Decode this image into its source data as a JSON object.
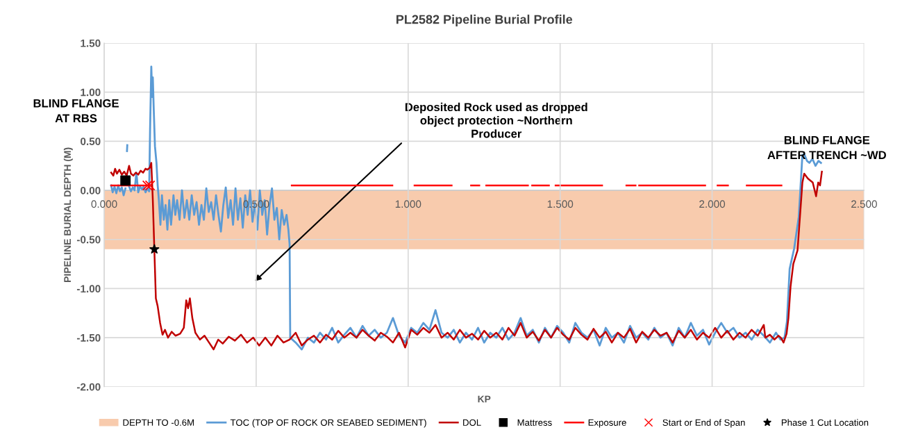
{
  "chart_data": {
    "type": "line",
    "title": "PL2582 Pipeline Burial Profile",
    "xlabel": "KP",
    "ylabel": "PIPELINE BURIAL DEPTH (M)",
    "xlim": [
      0,
      2.5
    ],
    "xticks": [
      {
        "value": 0,
        "label": "0.000"
      },
      {
        "value": 0.5,
        "label": "0.500"
      },
      {
        "value": 1.0,
        "label": "1.000"
      },
      {
        "value": 1.5,
        "label": "1.500"
      },
      {
        "value": 2.0,
        "label": "2.000"
      },
      {
        "value": 2.5,
        "label": "2.500"
      }
    ],
    "ylim": [
      -2,
      1.5
    ],
    "yticks": [
      {
        "value": -2,
        "label": "-2.00"
      },
      {
        "value": -1.5,
        "label": "-1.50"
      },
      {
        "value": -1,
        "label": "-1.00"
      },
      {
        "value": -0.5,
        "label": "-0.50"
      },
      {
        "value": 0,
        "label": "0.00"
      },
      {
        "value": 0.5,
        "label": "0.50"
      },
      {
        "value": 1,
        "label": "1.00"
      },
      {
        "value": 1.5,
        "label": "1.50"
      }
    ],
    "grid": true,
    "legend": "bottom",
    "bands": [
      {
        "axis": "y",
        "from": 0,
        "to": -0.6,
        "label": "DEPTH TO -0.6M",
        "color": "#f8cbad"
      }
    ],
    "annotations": [
      "BLIND FLANGE\nAT RBS",
      "BLIND FLANGE\nAFTER TRENCH ~WD",
      "Deposited Rock used as dropped\nobject protection ~Northern\nProducer"
    ],
    "series": [
      {
        "name": "TOC (TOP OF ROCK OR SEABED SEDIMENT)",
        "type": "line",
        "color": "#5b9bd5",
        "marker": "none",
        "x": [
          0.023,
          0.028,
          0.034,
          0.04,
          0.046,
          0.052,
          0.058,
          0.064,
          0.07,
          0.074,
          0.075,
          0.076,
          0.077,
          0.082,
          0.088,
          0.094,
          0.1,
          0.106,
          0.112,
          0.118,
          0.124,
          0.13,
          0.136,
          0.142,
          0.148,
          0.151,
          0.155,
          0.158,
          0.16,
          0.163,
          0.167,
          0.172,
          0.176,
          0.18,
          0.185,
          0.19,
          0.196,
          0.202,
          0.208,
          0.214,
          0.22,
          0.228,
          0.234,
          0.24,
          0.248,
          0.256,
          0.264,
          0.272,
          0.28,
          0.288,
          0.296,
          0.304,
          0.312,
          0.32,
          0.328,
          0.336,
          0.344,
          0.352,
          0.36,
          0.368,
          0.376,
          0.384,
          0.392,
          0.4,
          0.408,
          0.416,
          0.424,
          0.432,
          0.44,
          0.448,
          0.456,
          0.464,
          0.472,
          0.48,
          0.488,
          0.496,
          0.504,
          0.512,
          0.52,
          0.528,
          0.536,
          0.544,
          0.552,
          0.56,
          0.568,
          0.576,
          0.584,
          0.592,
          0.6,
          0.606,
          0.61,
          0.612,
          0.63,
          0.65,
          0.67,
          0.69,
          0.71,
          0.73,
          0.75,
          0.77,
          0.79,
          0.81,
          0.83,
          0.85,
          0.87,
          0.89,
          0.91,
          0.93,
          0.95,
          0.97,
          0.99,
          1.01,
          1.03,
          1.05,
          1.07,
          1.09,
          1.11,
          1.13,
          1.15,
          1.17,
          1.19,
          1.21,
          1.23,
          1.25,
          1.27,
          1.29,
          1.31,
          1.33,
          1.35,
          1.37,
          1.39,
          1.41,
          1.43,
          1.45,
          1.47,
          1.49,
          1.51,
          1.53,
          1.55,
          1.57,
          1.59,
          1.61,
          1.63,
          1.65,
          1.67,
          1.69,
          1.71,
          1.73,
          1.75,
          1.77,
          1.79,
          1.81,
          1.83,
          1.85,
          1.87,
          1.89,
          1.91,
          1.93,
          1.95,
          1.97,
          1.99,
          2.01,
          2.03,
          2.05,
          2.07,
          2.09,
          2.11,
          2.13,
          2.15,
          2.17,
          2.19,
          2.21,
          2.225,
          2.238,
          2.246,
          2.255,
          2.27,
          2.285,
          2.297,
          2.303,
          2.312,
          2.32,
          2.33,
          2.34,
          2.35,
          2.358
        ],
        "values": [
          0.05,
          -0.02,
          0.04,
          -0.03,
          0.05,
          -0.01,
          0.03,
          -0.05,
          0.02,
          null,
          0.4,
          0.46,
          null,
          0.04,
          -0.01,
          0.03,
          0.0,
          0.18,
          -0.02,
          0.04,
          0.01,
          0.04,
          -0.02,
          0.02,
          -0.01,
          0.62,
          1.26,
          0.95,
          1.15,
          0.83,
          0.45,
          0.28,
          0.05,
          -0.1,
          -0.35,
          -0.05,
          -0.3,
          -0.15,
          -0.4,
          -0.1,
          -0.35,
          -0.05,
          -0.25,
          -0.1,
          -0.3,
          0.0,
          -0.28,
          -0.1,
          -0.3,
          -0.05,
          -0.25,
          -0.12,
          -0.35,
          -0.15,
          -0.3,
          0.02,
          -0.22,
          -0.12,
          -0.3,
          -0.05,
          -0.25,
          -0.42,
          -0.15,
          0.03,
          -0.28,
          -0.1,
          -0.35,
          0.02,
          -0.3,
          -0.08,
          -0.38,
          -0.05,
          -0.25,
          0.0,
          -0.32,
          -0.12,
          -0.4,
          0.0,
          -0.25,
          -0.1,
          -0.45,
          -0.15,
          0.02,
          -0.3,
          -0.18,
          -0.5,
          -0.2,
          -0.35,
          -0.25,
          -0.4,
          -0.55,
          -1.5,
          -1.55,
          -1.62,
          -1.5,
          -1.55,
          -1.45,
          -1.52,
          -1.4,
          -1.55,
          -1.47,
          -1.4,
          -1.5,
          -1.38,
          -1.48,
          -1.42,
          -1.5,
          -1.45,
          -1.3,
          -1.48,
          -1.55,
          -1.4,
          -1.45,
          -1.35,
          -1.42,
          -1.22,
          -1.45,
          -1.5,
          -1.42,
          -1.55,
          -1.45,
          -1.52,
          -1.4,
          -1.55,
          -1.45,
          -1.5,
          -1.4,
          -1.52,
          -1.45,
          -1.3,
          -1.48,
          -1.42,
          -1.55,
          -1.4,
          -1.5,
          -1.38,
          -1.45,
          -1.55,
          -1.35,
          -1.45,
          -1.5,
          -1.42,
          -1.58,
          -1.4,
          -1.5,
          -1.45,
          -1.55,
          -1.38,
          -1.5,
          -1.45,
          -1.52,
          -1.4,
          -1.5,
          -1.45,
          -1.58,
          -1.4,
          -1.5,
          -1.35,
          -1.48,
          -1.42,
          -1.57,
          -1.45,
          -1.35,
          -1.45,
          -1.4,
          -1.5,
          -1.45,
          -1.52,
          -1.42,
          -1.48,
          -1.55,
          -1.45,
          -1.52,
          -1.5,
          -1.34,
          -0.8,
          -0.59,
          -0.27,
          0.36,
          0.37,
          0.3,
          0.28,
          0.32,
          0.25,
          0.3,
          0.28
        ]
      },
      {
        "name": "DOL",
        "type": "line",
        "color": "#c00000",
        "marker": "none",
        "x": [
          0.023,
          0.03,
          0.036,
          0.042,
          0.05,
          0.058,
          0.066,
          0.074,
          0.082,
          0.088,
          0.096,
          0.104,
          0.112,
          0.12,
          0.128,
          0.136,
          0.142,
          0.15,
          0.155,
          0.16,
          0.165,
          0.17,
          0.176,
          0.184,
          0.192,
          0.2,
          0.21,
          0.222,
          0.235,
          0.25,
          0.262,
          0.27,
          0.276,
          0.282,
          0.29,
          0.3,
          0.315,
          0.33,
          0.345,
          0.36,
          0.375,
          0.39,
          0.41,
          0.43,
          0.45,
          0.47,
          0.49,
          0.51,
          0.53,
          0.55,
          0.57,
          0.59,
          0.61,
          0.63,
          0.65,
          0.67,
          0.69,
          0.71,
          0.73,
          0.75,
          0.77,
          0.79,
          0.81,
          0.83,
          0.85,
          0.87,
          0.89,
          0.91,
          0.93,
          0.95,
          0.97,
          0.99,
          1.01,
          1.03,
          1.05,
          1.07,
          1.09,
          1.11,
          1.13,
          1.15,
          1.17,
          1.19,
          1.21,
          1.23,
          1.25,
          1.27,
          1.29,
          1.31,
          1.33,
          1.35,
          1.37,
          1.39,
          1.41,
          1.43,
          1.45,
          1.47,
          1.49,
          1.51,
          1.53,
          1.55,
          1.57,
          1.59,
          1.61,
          1.63,
          1.65,
          1.67,
          1.69,
          1.71,
          1.73,
          1.75,
          1.77,
          1.79,
          1.81,
          1.83,
          1.85,
          1.87,
          1.89,
          1.91,
          1.93,
          1.95,
          1.97,
          1.99,
          2.01,
          2.03,
          2.05,
          2.07,
          2.09,
          2.11,
          2.13,
          2.15,
          2.17,
          2.175,
          2.19,
          2.205,
          2.218,
          2.226,
          2.235,
          2.245,
          2.251,
          2.258,
          2.267,
          2.281,
          2.297,
          2.303,
          2.315,
          2.331,
          2.342,
          2.349,
          2.355,
          2.361
        ],
        "values": [
          0.18,
          0.15,
          0.22,
          0.17,
          0.21,
          0.16,
          0.19,
          0.15,
          0.25,
          0.17,
          0.15,
          0.18,
          0.16,
          0.2,
          0.18,
          0.22,
          0.21,
          0.23,
          0.28,
          -0.1,
          -0.6,
          -1.1,
          -1.18,
          -1.35,
          -1.47,
          -1.42,
          -1.5,
          -1.44,
          -1.48,
          -1.46,
          -1.4,
          -1.12,
          -1.2,
          -1.1,
          -1.3,
          -1.45,
          -1.52,
          -1.48,
          -1.55,
          -1.62,
          -1.52,
          -1.56,
          -1.49,
          -1.53,
          -1.47,
          -1.55,
          -1.5,
          -1.58,
          -1.5,
          -1.58,
          -1.48,
          -1.55,
          -1.52,
          -1.45,
          -1.58,
          -1.52,
          -1.48,
          -1.55,
          -1.47,
          -1.52,
          -1.43,
          -1.5,
          -1.45,
          -1.5,
          -1.42,
          -1.48,
          -1.53,
          -1.45,
          -1.49,
          -1.55,
          -1.45,
          -1.6,
          -1.42,
          -1.47,
          -1.4,
          -1.45,
          -1.37,
          -1.5,
          -1.45,
          -1.52,
          -1.42,
          -1.5,
          -1.46,
          -1.52,
          -1.43,
          -1.5,
          -1.45,
          -1.52,
          -1.4,
          -1.48,
          -1.35,
          -1.5,
          -1.44,
          -1.53,
          -1.42,
          -1.5,
          -1.4,
          -1.47,
          -1.52,
          -1.4,
          -1.47,
          -1.52,
          -1.41,
          -1.5,
          -1.44,
          -1.55,
          -1.45,
          -1.5,
          -1.41,
          -1.55,
          -1.44,
          -1.5,
          -1.42,
          -1.48,
          -1.45,
          -1.55,
          -1.43,
          -1.5,
          -1.42,
          -1.52,
          -1.45,
          -1.5,
          -1.4,
          -1.5,
          -1.43,
          -1.52,
          -1.45,
          -1.5,
          -1.42,
          -1.48,
          -1.37,
          -1.5,
          -1.47,
          -1.52,
          -1.48,
          -1.5,
          -1.55,
          -1.46,
          -1.3,
          -0.98,
          -0.75,
          -0.61,
          0.08,
          0.17,
          0.12,
          0.08,
          -0.06,
          0.08,
          0.05,
          0.19
        ]
      },
      {
        "name": "Mattress",
        "type": "scatter",
        "color": "#000000",
        "marker": "square",
        "x": [
          0.07
        ],
        "values": [
          0.1
        ]
      },
      {
        "name": "Exposure",
        "type": "line",
        "color": "#ff0000",
        "marker": "none",
        "x": [
          0.023,
          0.149,
          0.3,
          0.617,
          0.948,
          0.98,
          1.021,
          1.143,
          1.17,
          1.207,
          1.234,
          1.245,
          1.257,
          1.394,
          1.4,
          1.408,
          1.463,
          1.47,
          1.485,
          1.638,
          1.68,
          1.718,
          1.748,
          1.754,
          1.76,
          1.977,
          1.99,
          2.018,
          2.052,
          2.08,
          2.114,
          2.228
        ],
        "values": [
          0.05,
          0.05,
          null,
          0.05,
          0.05,
          null,
          0.05,
          0.05,
          null,
          0.05,
          0.05,
          null,
          0.05,
          0.05,
          null,
          0.05,
          0.05,
          null,
          0.05,
          0.05,
          null,
          0.05,
          0.05,
          null,
          0.05,
          0.05,
          null,
          0.05,
          0.05,
          null,
          0.05,
          0.05
        ]
      },
      {
        "name": "Start or End of Span",
        "type": "scatter",
        "color": "#ff0000",
        "marker": "cross",
        "x": [
          0.142,
          0.151
        ],
        "values": [
          0.05,
          0.05
        ]
      },
      {
        "name": "Phase 1 Cut Location",
        "type": "scatter",
        "color": "#000000",
        "marker": "star",
        "x": [
          0.165
        ],
        "values": [
          -0.6
        ]
      }
    ]
  }
}
